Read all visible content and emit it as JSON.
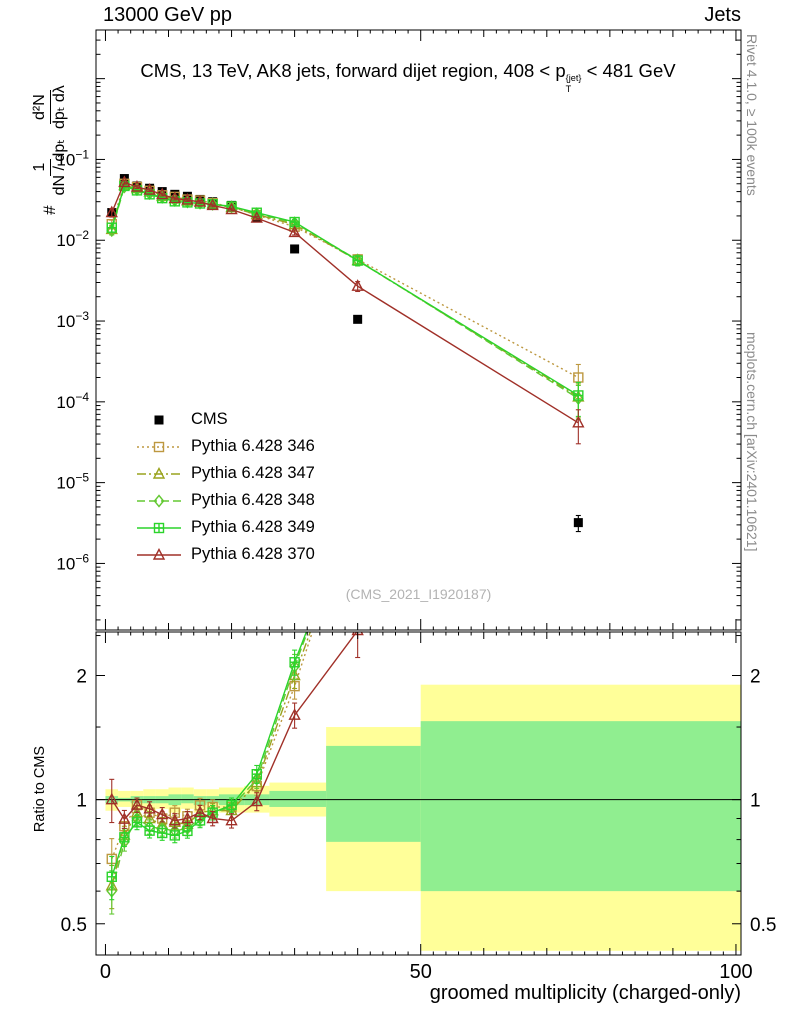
{
  "header": {
    "left": "13000 GeV pp",
    "right": "Jets"
  },
  "panel_title": {
    "pre": "CMS, 13 TeV, AK8 jets, forward dijet region, 408 < p",
    "sup": "{jet}",
    "sub": "T",
    "post": " < 481 GeV"
  },
  "ylabel": {
    "prefix": "#",
    "frac1_num": "1",
    "frac1_den": "dN / dpₜ",
    "frac2_num": "d²N",
    "frac2_den": "dpₜ dλ"
  },
  "watermark": "(CMS_2021_I1920187)",
  "right_margin": {
    "top": "Rivet 4.1.0, ≥ 100k events",
    "bottom": "mcplots.cern.ch [arXiv:2401.10621]"
  },
  "chart_data": {
    "type": "line",
    "title": "CMS, 13 TeV, AK8 jets, forward dijet region, 408 < pT{jet} < 481 GeV",
    "x": [
      1,
      3,
      5,
      7,
      9,
      11,
      13,
      15,
      17,
      20,
      24,
      30,
      40,
      75
    ],
    "series": [
      {
        "id": "cms",
        "name": "CMS",
        "color": "#000000",
        "marker": "square_filled",
        "line": "none",
        "values": [
          0.022,
          0.058,
          0.047,
          0.044,
          0.04,
          0.037,
          0.035,
          0.032,
          0.03,
          0.027,
          0.019,
          0.0078,
          0.00105,
          3.2e-06
        ]
      },
      {
        "id": "346",
        "name": "Pythia 6.428 346",
        "color": "#bd9840",
        "marker": "square_open",
        "line": "dotted",
        "values": [
          0.0158,
          0.05,
          0.0456,
          0.0409,
          0.036,
          0.0344,
          0.0319,
          0.031,
          0.0288,
          0.0259,
          0.0205,
          0.0147,
          0.0058,
          0.0002
        ]
      },
      {
        "id": "347",
        "name": "Pythia 6.428 347",
        "color": "#9aa31e",
        "marker": "triangle_open",
        "line": "dashdot",
        "values": [
          0.0136,
          0.0476,
          0.0437,
          0.0396,
          0.0348,
          0.0326,
          0.0305,
          0.0298,
          0.0282,
          0.0254,
          0.0209,
          0.0156,
          0.0056,
          0.000115
        ]
      },
      {
        "id": "348",
        "name": "Pythia 6.428 348",
        "color": "#63c832",
        "marker": "diamond_open",
        "line": "dashed",
        "values": [
          0.0132,
          0.0458,
          0.0423,
          0.0378,
          0.034,
          0.0311,
          0.0298,
          0.0288,
          0.0279,
          0.0259,
          0.0213,
          0.0164,
          0.0057,
          0.00011
        ]
      },
      {
        "id": "349",
        "name": "Pythia 6.428 349",
        "color": "#2bd42b",
        "marker": "boxplus",
        "line": "solid",
        "values": [
          0.0143,
          0.047,
          0.0414,
          0.037,
          0.0332,
          0.0303,
          0.0294,
          0.0285,
          0.0279,
          0.0262,
          0.0219,
          0.0168,
          0.0056,
          0.00012
        ]
      },
      {
        "id": "370",
        "name": "Pythia 6.428 370",
        "color": "#a03028",
        "marker": "triangle_open",
        "line": "solid",
        "values": [
          0.022,
          0.052,
          0.0456,
          0.0418,
          0.0368,
          0.0329,
          0.0315,
          0.0298,
          0.027,
          0.024,
          0.0188,
          0.0125,
          0.0027,
          5.5e-05
        ]
      }
    ],
    "err_frac": [
      0.12,
      0.05,
      0.04,
      0.04,
      0.04,
      0.04,
      0.04,
      0.04,
      0.04,
      0.04,
      0.05,
      0.07,
      0.14,
      0.45
    ],
    "main_axis": {
      "ylim": [
        1.5e-07,
        4
      ],
      "yticks_exponents": [
        -1,
        -2,
        -3,
        -4,
        -5,
        -6
      ]
    },
    "x_axis": {
      "lim": [
        -1.5,
        100.8
      ],
      "major": [
        0,
        50,
        100
      ],
      "label": "groomed multiplicity (charged-only)"
    },
    "ratio_axis": {
      "ylim": [
        0.42,
        2.55
      ],
      "ticks": [
        0.5,
        1,
        2
      ],
      "minor_ticks": [
        0.6,
        0.7,
        0.8,
        0.9,
        1.5,
        2.5
      ],
      "label": "Ratio to CMS"
    },
    "bands": {
      "yellow_color": "#ffff99",
      "green_color": "#90ee90",
      "yellow": [
        [
          0,
          2,
          0.94,
          1.06
        ],
        [
          2,
          4,
          0.96,
          1.05
        ],
        [
          4,
          6,
          0.95,
          1.05
        ],
        [
          6,
          8,
          0.94,
          1.06
        ],
        [
          8,
          10,
          0.95,
          1.06
        ],
        [
          10,
          12,
          0.93,
          1.07
        ],
        [
          12,
          14,
          0.95,
          1.07
        ],
        [
          14,
          16,
          0.93,
          1.06
        ],
        [
          16,
          18,
          0.95,
          1.06
        ],
        [
          18,
          22,
          0.93,
          1.07
        ],
        [
          22,
          26,
          0.93,
          1.08
        ],
        [
          26,
          35,
          0.91,
          1.1
        ],
        [
          35,
          50,
          0.6,
          1.5
        ],
        [
          50,
          101,
          0.43,
          1.9
        ]
      ],
      "green": [
        [
          0,
          2,
          0.98,
          1.02
        ],
        [
          2,
          4,
          0.99,
          1.01
        ],
        [
          4,
          6,
          0.98,
          1.02
        ],
        [
          6,
          8,
          0.98,
          1.02
        ],
        [
          8,
          10,
          0.98,
          1.02
        ],
        [
          10,
          12,
          0.97,
          1.03
        ],
        [
          12,
          14,
          0.98,
          1.03
        ],
        [
          14,
          16,
          0.97,
          1.02
        ],
        [
          16,
          18,
          0.98,
          1.02
        ],
        [
          18,
          22,
          0.97,
          1.03
        ],
        [
          22,
          26,
          0.97,
          1.03
        ],
        [
          26,
          35,
          0.96,
          1.05
        ],
        [
          35,
          50,
          0.79,
          1.35
        ],
        [
          50,
          101,
          0.6,
          1.55
        ]
      ]
    }
  }
}
